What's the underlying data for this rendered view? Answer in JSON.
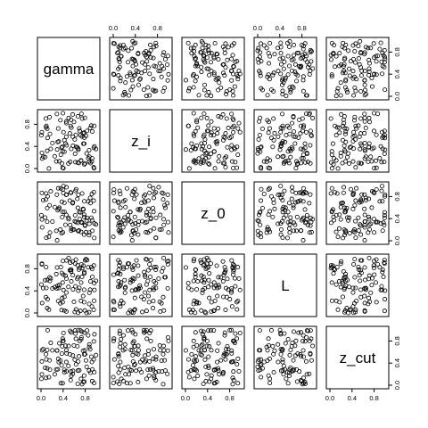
{
  "chart_data": {
    "type": "scatter",
    "variables": [
      "gamma",
      "z_i",
      "z_0",
      "L",
      "z_cut"
    ],
    "axis_range": [
      0,
      1
    ],
    "ticks": [
      0.0,
      0.4,
      0.8
    ],
    "tick_labels": [
      "0.0",
      "0.4",
      "0.8"
    ],
    "n_points": 100,
    "point_marker": "open-circle",
    "grid": false,
    "legend": "none",
    "colors": {
      "points": "#000000",
      "background": "#ffffff"
    }
  }
}
